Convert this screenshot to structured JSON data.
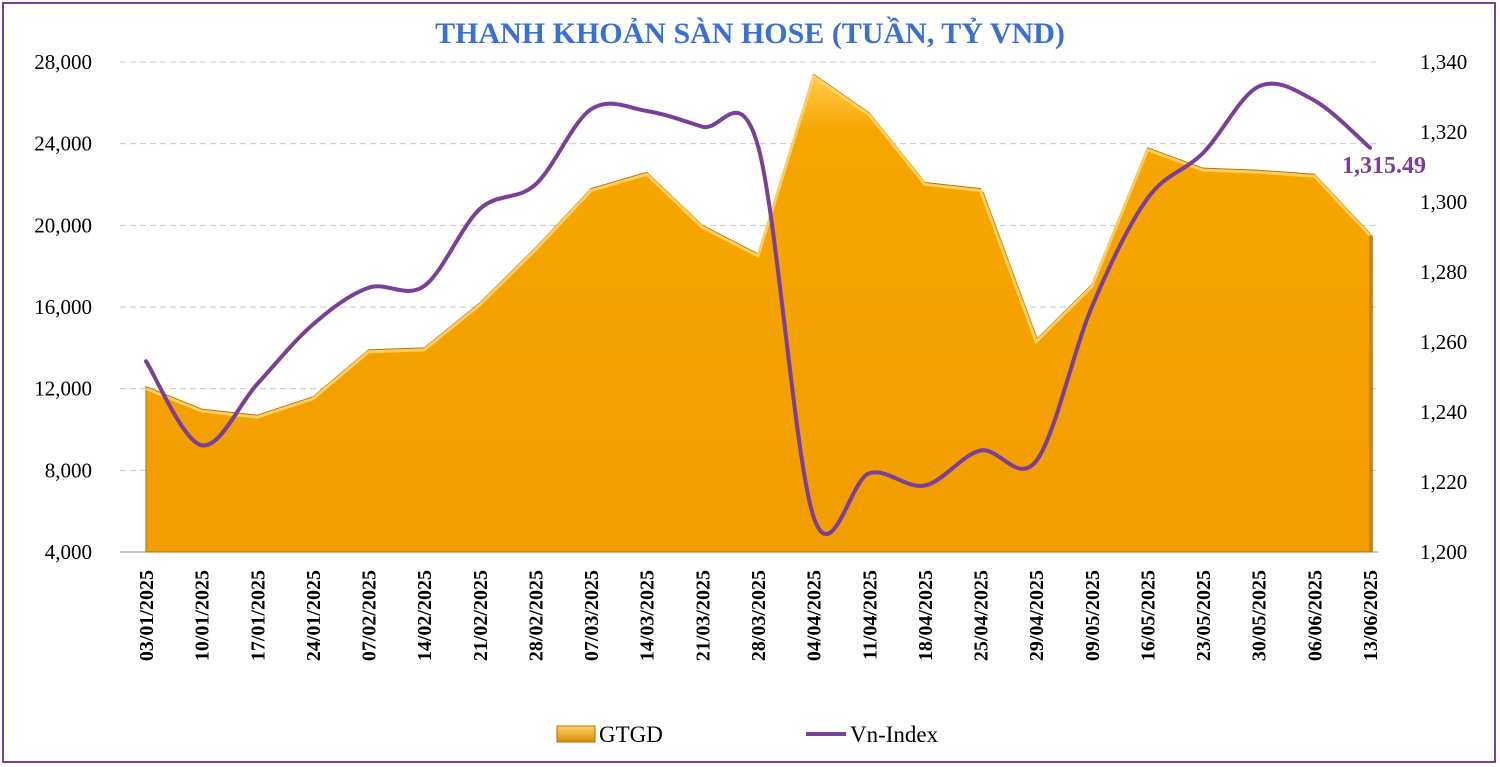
{
  "chart_data": {
    "type": "area",
    "title": "THANH KHOẢN SÀN HOSE (TUẦN, TỶ VND)",
    "categories": [
      "03/01/2025",
      "10/01/2025",
      "17/01/2025",
      "24/01/2025",
      "07/02/2025",
      "14/02/2025",
      "21/02/2025",
      "28/02/2025",
      "07/03/2025",
      "14/03/2025",
      "21/03/2025",
      "28/03/2025",
      "04/04/2025",
      "11/04/2025",
      "18/04/2025",
      "25/04/2025",
      "29/04/2025",
      "09/05/2025",
      "16/05/2025",
      "23/05/2025",
      "30/05/2025",
      "06/06/2025",
      "13/06/2025"
    ],
    "series": [
      {
        "name": "GTGD",
        "type": "area",
        "axis": "left",
        "values": [
          12100,
          11000,
          10700,
          11600,
          13900,
          14000,
          16200,
          18900,
          21800,
          22600,
          20000,
          18600,
          27400,
          25500,
          22100,
          21800,
          14400,
          17100,
          23800,
          22800,
          22700,
          22500,
          19600
        ]
      },
      {
        "name": "Vn-Index",
        "type": "line",
        "axis": "right",
        "values": [
          1254.5,
          1230.5,
          1248.0,
          1265.0,
          1275.5,
          1276.0,
          1298.0,
          1305.0,
          1326.5,
          1326.0,
          1321.5,
          1316.0,
          1210.0,
          1222.5,
          1219.0,
          1229.0,
          1226.0,
          1270.0,
          1301.0,
          1314.0,
          1333.0,
          1329.0,
          1315.49
        ]
      }
    ],
    "ylim_left": [
      4000,
      28000
    ],
    "yticks_left": [
      "4,000",
      "8,000",
      "12,000",
      "16,000",
      "20,000",
      "24,000",
      "28,000"
    ],
    "ylim_right": [
      1200,
      1340
    ],
    "yticks_right": [
      "1,200",
      "1,220",
      "1,240",
      "1,260",
      "1,280",
      "1,300",
      "1,320",
      "1,340"
    ],
    "last_label": "1,315.49",
    "legend_position": "bottom",
    "grid": true,
    "colors": {
      "title": "#3a6fd8",
      "area": "#f5a300",
      "area_top": "#ffd36a",
      "area_dark": "#b86e00",
      "line": "#7a3f98",
      "grid": "#c8c8c8",
      "border": "#7a3f98"
    }
  }
}
